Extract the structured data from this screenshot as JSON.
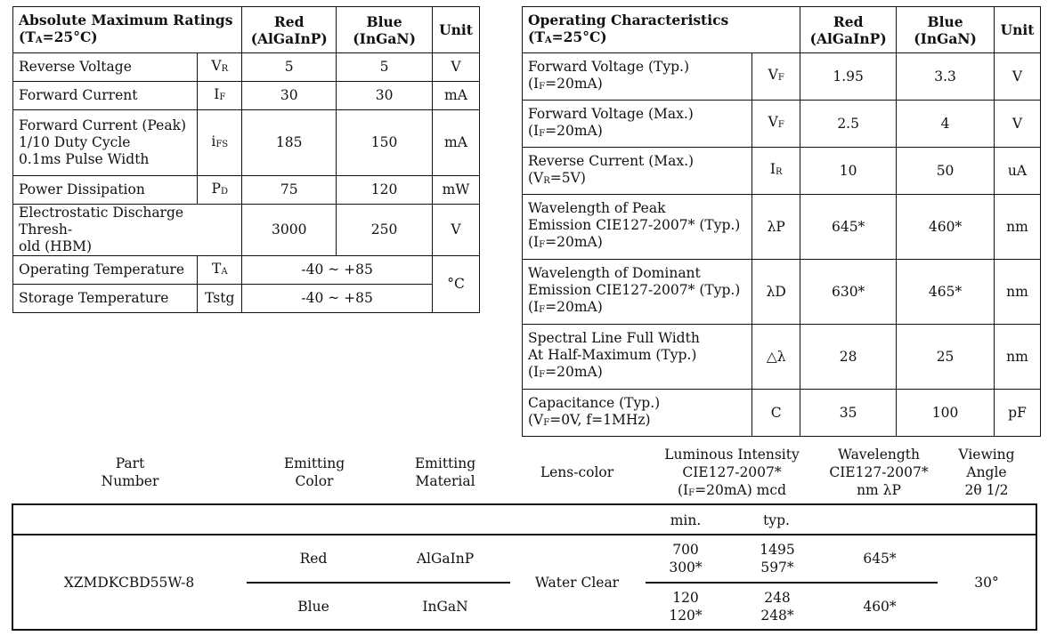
{
  "abs": {
    "title": "Absolute Maximum Ratings",
    "cond": "(TA=25°C)",
    "col_red": "Red",
    "col_red_mat": "(AlGaInP)",
    "col_blue": "Blue",
    "col_blue_mat": "(InGaN)",
    "col_unit": "Unit",
    "rows": [
      {
        "param": "Reverse Voltage",
        "sym": "VR",
        "red": "5",
        "blue": "5",
        "unit": "V"
      },
      {
        "param": "Forward Current",
        "sym": "IF",
        "red": "30",
        "blue": "30",
        "unit": "mA"
      },
      {
        "param": "Forward Current (Peak)",
        "param2": "1/10 Duty Cycle",
        "param3": "0.1ms Pulse Width",
        "sym": "iFS",
        "red": "185",
        "blue": "150",
        "unit": "mA"
      },
      {
        "param": "Power Dissipation",
        "sym": "PD",
        "red": "75",
        "blue": "120",
        "unit": "mW"
      },
      {
        "param": "Electrostatic Discharge Thresh-",
        "param2": "old (HBM)",
        "red": "3000",
        "blue": "250",
        "unit": "V"
      },
      {
        "param": "Operating Temperature",
        "sym": "TA",
        "both": "-40 ~ +85"
      },
      {
        "param": "Storage Temperature",
        "sym": "Tstg",
        "both": "-40 ~ +85",
        "unit": "°C"
      }
    ]
  },
  "op": {
    "title": "Operating Characteristics",
    "cond": "(TA=25°C)",
    "col_red": "Red",
    "col_red_mat": "(AlGaInP)",
    "col_blue": "Blue",
    "col_blue_mat": "(InGaN)",
    "col_unit": "Unit",
    "rows": [
      {
        "p1": "Forward Voltage (Typ.)",
        "p2": "(IF=20mA)",
        "sym": "VF",
        "red": "1.95",
        "blue": "3.3",
        "unit": "V"
      },
      {
        "p1": "Forward Voltage (Max.)",
        "p2": "(IF=20mA)",
        "sym": "VF",
        "red": "2.5",
        "blue": "4",
        "unit": "V"
      },
      {
        "p1": "Reverse Current (Max.)",
        "p2": "(VR=5V)",
        "sym": "IR",
        "red": "10",
        "blue": "50",
        "unit": "uA"
      },
      {
        "p1": "Wavelength of Peak",
        "p2": "Emission CIE127-2007* (Typ.)",
        "p3": "(IF=20mA)",
        "sym": "λP",
        "red": "645*",
        "blue": "460*",
        "unit": "nm"
      },
      {
        "p1": "Wavelength of Dominant",
        "p2": "Emission CIE127-2007* (Typ.)",
        "p3": "(IF=20mA)",
        "sym": "λD",
        "red": "630*",
        "blue": "465*",
        "unit": "nm"
      },
      {
        "p1": "Spectral Line Full Width",
        "p2": "At Half-Maximum (Typ.)",
        "p3": "(IF=20mA)",
        "sym": "△λ",
        "red": "28",
        "blue": "25",
        "unit": "nm"
      },
      {
        "p1": "Capacitance (Typ.)",
        "p2": "(VF=0V, f=1MHz)",
        "sym": "C",
        "red": "35",
        "blue": "100",
        "unit": "pF"
      }
    ]
  },
  "sel": {
    "h_part": [
      "Part",
      "Number"
    ],
    "h_color": [
      "Emitting",
      "Color"
    ],
    "h_mat": [
      "Emitting",
      "Material"
    ],
    "h_lens": "Lens-color",
    "h_lum": [
      "Luminous Intensity",
      "CIE127-2007*",
      "(IF=20mA) mcd"
    ],
    "h_wave": [
      "Wavelength",
      "CIE127-2007*",
      "nm λP"
    ],
    "h_view": [
      "Viewing",
      "Angle",
      "2θ 1/2"
    ],
    "min": "min.",
    "typ": "typ.",
    "part": "XZMDKCBD55W-8",
    "lens": "Water Clear",
    "angle": "30°",
    "red": {
      "color": "Red",
      "mat": "AlGaInP",
      "min1": "700",
      "min2": "300*",
      "typ1": "1495",
      "typ2": "597*",
      "wave": "645*"
    },
    "blue": {
      "color": "Blue",
      "mat": "InGaN",
      "min1": "120",
      "min2": "120*",
      "typ1": "248",
      "typ2": "248*",
      "wave": "460*"
    }
  }
}
